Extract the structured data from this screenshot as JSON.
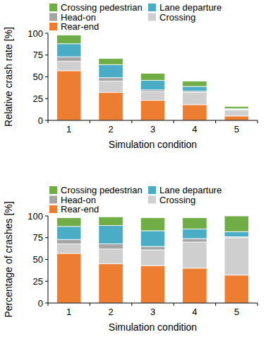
{
  "chart_data": [
    {
      "type": "bar",
      "stacked": true,
      "legend": "top",
      "grid": false,
      "x_label": "Simulation condition",
      "y_label": "Relative crash rate [%]",
      "categories": [
        "1",
        "2",
        "3",
        "4",
        "5"
      ],
      "ylim": [
        0,
        100
      ],
      "yticks": [
        0,
        25,
        50,
        75,
        100
      ],
      "series": [
        {
          "name": "Rear-end",
          "color": "#ed7d31",
          "values": [
            57,
            32,
            23,
            18,
            5
          ]
        },
        {
          "name": "Crossing",
          "color": "#cfcfcf",
          "values": [
            11,
            13,
            10,
            14,
            7
          ]
        },
        {
          "name": "Head-on",
          "color": "#a5a5a5",
          "values": [
            5,
            4,
            2,
            1.5,
            0.5
          ]
        },
        {
          "name": "Lane departure",
          "color": "#4bacc6",
          "values": [
            15,
            15,
            11,
            5.5,
            1
          ]
        },
        {
          "name": "Crossing pedestrian",
          "color": "#70ad47",
          "values": [
            10,
            7,
            8,
            6,
            2.5
          ]
        }
      ]
    },
    {
      "type": "bar",
      "stacked": true,
      "legend": "top",
      "grid": false,
      "x_label": "Simulation condition",
      "y_label": "Percentage of crashes [%]",
      "categories": [
        "1",
        "2",
        "3",
        "4",
        "5"
      ],
      "ylim": [
        0,
        100
      ],
      "yticks": [
        0,
        25,
        50,
        75,
        100
      ],
      "series": [
        {
          "name": "Rear-end",
          "color": "#ed7d31",
          "values": [
            57,
            45,
            43,
            40,
            32
          ]
        },
        {
          "name": "Crossing",
          "color": "#cfcfcf",
          "values": [
            11,
            17,
            18,
            30,
            43
          ]
        },
        {
          "name": "Head-on",
          "color": "#a5a5a5",
          "values": [
            5,
            6,
            4,
            4,
            1
          ]
        },
        {
          "name": "Lane departure",
          "color": "#4bacc6",
          "values": [
            15,
            21,
            18,
            11,
            6
          ]
        },
        {
          "name": "Crossing pedestrian",
          "color": "#70ad47",
          "values": [
            10,
            10,
            15,
            13,
            18
          ]
        }
      ]
    }
  ]
}
